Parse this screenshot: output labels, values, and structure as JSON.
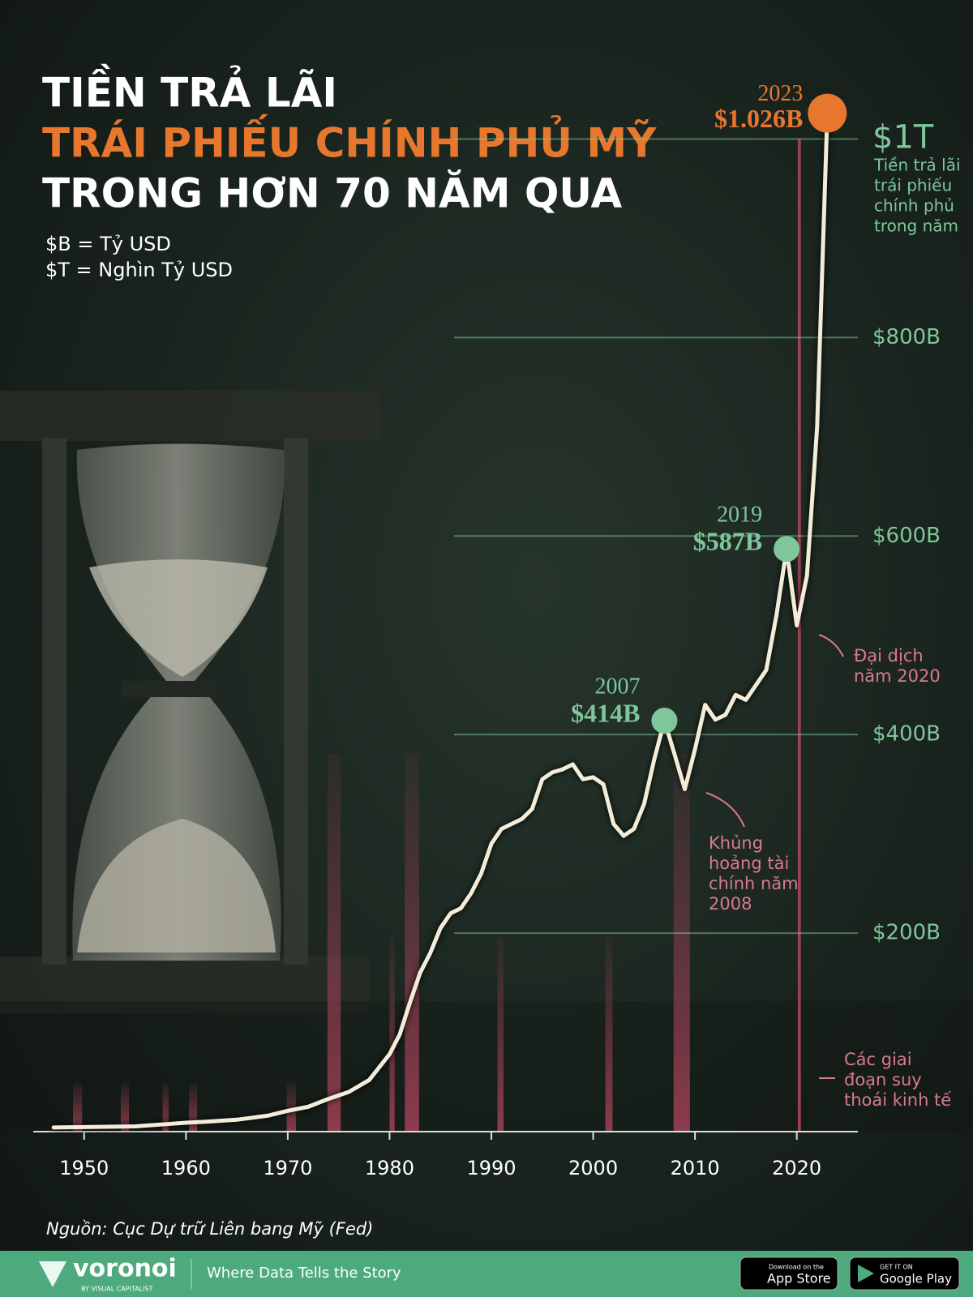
{
  "chart_data": {
    "type": "line",
    "title": [
      "TIỀN TRẢ LÃI",
      "TRÁI PHIẾU CHÍNH PHỦ MỸ",
      "TRONG HƠN 70 NĂM QUA"
    ],
    "subtitle": [
      "$B = Tỷ USD",
      "$T = Nghìn Tỷ USD"
    ],
    "x": [
      1947,
      1950,
      1955,
      1958,
      1960,
      1962,
      1965,
      1968,
      1970,
      1972,
      1974,
      1976,
      1978,
      1980,
      1981,
      1982,
      1983,
      1984,
      1985,
      1986,
      1987,
      1988,
      1989,
      1990,
      1991,
      1992,
      1993,
      1994,
      1995,
      1996,
      1997,
      1998,
      1999,
      2000,
      2001,
      2002,
      2003,
      2004,
      2005,
      2006,
      2007,
      2008,
      2009,
      2010,
      2011,
      2012,
      2013,
      2014,
      2015,
      2016,
      2017,
      2018,
      2019,
      2020,
      2021,
      2022,
      2023
    ],
    "series": [
      {
        "name": "Tiền trả lãi trái phiếu chính phủ trong năm",
        "color": "#f3ecd8",
        "values": [
          4.2,
          4.6,
          5.3,
          7.5,
          9,
          10,
          12,
          16,
          21,
          25,
          33,
          40,
          52,
          78,
          98,
          130,
          160,
          180,
          205,
          220,
          225,
          240,
          260,
          290,
          305,
          310,
          315,
          325,
          355,
          362,
          365,
          370,
          355,
          357,
          350,
          310,
          298,
          305,
          330,
          375,
          414,
          380,
          345,
          385,
          430,
          415,
          420,
          440,
          435,
          450,
          465,
          520,
          587,
          510,
          560,
          710,
          1026
        ]
      }
    ],
    "highlights": [
      {
        "x": 2007,
        "value": 414,
        "year_label": "2007",
        "value_label": "$414B",
        "color": "#7fc79b"
      },
      {
        "x": 2019,
        "value": 587,
        "year_label": "2019",
        "value_label": "$587B",
        "color": "#7fc79b"
      },
      {
        "x": 2023,
        "value": 1026,
        "year_label": "2023",
        "value_label": "$1.026B",
        "color": "#e8772e"
      }
    ],
    "recessions": [
      [
        1948.9,
        1949.8
      ],
      [
        1953.6,
        1954.4
      ],
      [
        1957.7,
        1958.3
      ],
      [
        1960.3,
        1961.1
      ],
      [
        1969.9,
        1970.8
      ],
      [
        1973.9,
        1975.2
      ],
      [
        1980.0,
        1980.5
      ],
      [
        1981.5,
        1982.9
      ],
      [
        1990.6,
        1991.2
      ],
      [
        2001.2,
        2001.9
      ],
      [
        2007.9,
        2009.5
      ],
      [
        2020.1,
        2020.4
      ]
    ],
    "recession_color": "#b0465d",
    "annotations": {
      "series_note": [
        "Tiền trả lãi",
        "trái phiếu",
        "chính phủ",
        "trong năm"
      ],
      "crisis": [
        "Khủng",
        "hoảng tài",
        "chính năm",
        "2008"
      ],
      "pandemic": [
        "Đại dịch",
        "năm 2020"
      ],
      "recession": [
        "Các giai",
        "đoạn suy",
        "thoái kinh tế"
      ]
    },
    "xlim": [
      1945,
      2026
    ],
    "ylim": [
      0,
      1100
    ],
    "xticks": [
      1950,
      1960,
      1970,
      1980,
      1990,
      2000,
      2010,
      2020
    ],
    "yticks": [
      {
        "value": 200,
        "label": "$200B"
      },
      {
        "value": 400,
        "label": "$400B"
      },
      {
        "value": 600,
        "label": "$600B"
      },
      {
        "value": 800,
        "label": "$800B"
      },
      {
        "value": 1000,
        "label": "$1T"
      }
    ],
    "grid": true,
    "source": "Nguồn: Cục Dự trữ Liên bang Mỹ (Fed)"
  },
  "footer": {
    "brand": "voronoi",
    "brand_sub": "BY VISUAL CAPITALIST",
    "tagline": "Where Data Tells the Story",
    "app_store_small": "Download on the",
    "app_store": "App Store",
    "play_small": "GET IT ON",
    "play": "Google Play"
  }
}
